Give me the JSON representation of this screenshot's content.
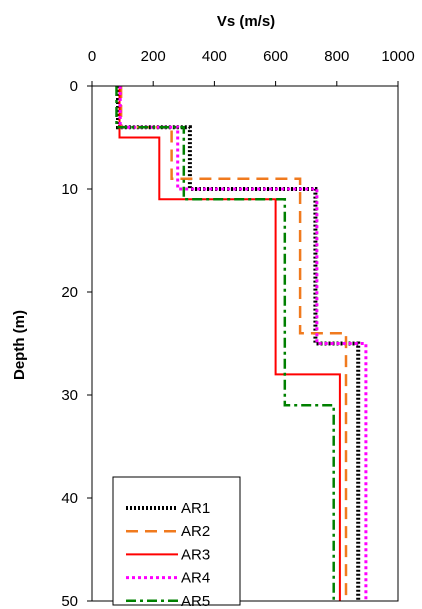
{
  "chart_data": {
    "type": "line",
    "title": "",
    "xlabel": "Vs (m/s)",
    "ylabel": "Depth (m)",
    "xlim": [
      0,
      1000
    ],
    "ylim": [
      0,
      50
    ],
    "y_inverted": true,
    "x_axis_position": "top",
    "x_ticks": [
      0,
      200,
      400,
      600,
      800,
      1000
    ],
    "y_ticks": [
      0,
      10,
      20,
      30,
      40,
      50
    ],
    "x_tick_labels": [
      "0",
      "200",
      "400",
      "600",
      "800",
      "1000"
    ],
    "y_tick_labels": [
      "0",
      "10",
      "20",
      "30",
      "40",
      "50"
    ],
    "grid": false,
    "legend_position": "bottom-left",
    "series": [
      {
        "name": "AR1",
        "color": "#000000",
        "style": "dotted-heavy",
        "points": [
          [
            85,
            0
          ],
          [
            85,
            4
          ],
          [
            320,
            4
          ],
          [
            320,
            10
          ],
          [
            730,
            10
          ],
          [
            730,
            25
          ],
          [
            870,
            25
          ],
          [
            870,
            50
          ]
        ]
      },
      {
        "name": "AR2",
        "color": "#F07A1E",
        "style": "long-dash",
        "points": [
          [
            95,
            0
          ],
          [
            95,
            4
          ],
          [
            260,
            4
          ],
          [
            260,
            9
          ],
          [
            680,
            9
          ],
          [
            680,
            24
          ],
          [
            830,
            24
          ],
          [
            830,
            50
          ]
        ]
      },
      {
        "name": "AR3",
        "color": "#FF0000",
        "style": "solid",
        "points": [
          [
            90,
            0
          ],
          [
            90,
            5
          ],
          [
            220,
            5
          ],
          [
            220,
            11
          ],
          [
            600,
            11
          ],
          [
            600,
            28
          ],
          [
            810,
            28
          ],
          [
            810,
            50
          ]
        ]
      },
      {
        "name": "AR4",
        "color": "#FF00FF",
        "style": "dotted",
        "points": [
          [
            92,
            0
          ],
          [
            92,
            4
          ],
          [
            280,
            4
          ],
          [
            280,
            10
          ],
          [
            735,
            10
          ],
          [
            735,
            25
          ],
          [
            895,
            25
          ],
          [
            895,
            50
          ]
        ]
      },
      {
        "name": "AR5",
        "color": "#008000",
        "style": "dash-dot",
        "points": [
          [
            80,
            0
          ],
          [
            80,
            4
          ],
          [
            300,
            4
          ],
          [
            300,
            11
          ],
          [
            630,
            11
          ],
          [
            630,
            31
          ],
          [
            790,
            31
          ],
          [
            790,
            50
          ]
        ]
      }
    ]
  }
}
